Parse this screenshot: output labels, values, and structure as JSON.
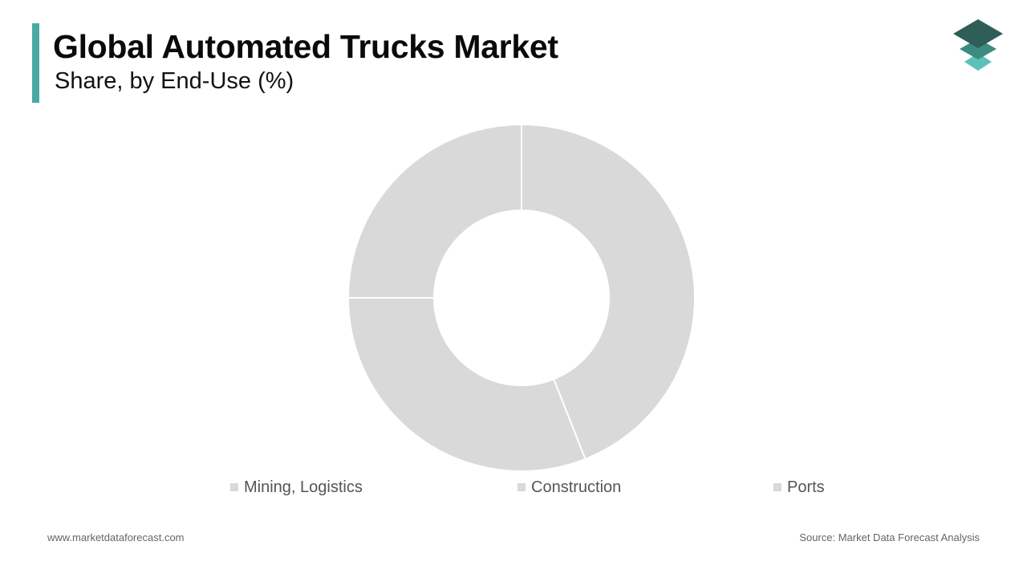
{
  "header": {
    "title": "Global Automated Trucks Market",
    "subtitle": "Share, by End-Use (%)",
    "accent_color": "#4aa9a4"
  },
  "logo": {
    "icon": "stacked-layers-logo",
    "colors": [
      "#2e5e57",
      "#3d8a80",
      "#5cc1b8"
    ]
  },
  "chart_data": {
    "type": "pie",
    "variant": "donut",
    "title": "Global Automated Trucks Market",
    "subtitle": "Share, by End-Use (%)",
    "categories": [
      "Mining, Logistics",
      "Construction",
      "Ports"
    ],
    "values": [
      44,
      31,
      25
    ],
    "colors": [
      "#d9d9d9",
      "#d9d9d9",
      "#d9d9d9"
    ],
    "legend_position": "bottom"
  },
  "legend": {
    "items": [
      {
        "label": "Mining, Logistics"
      },
      {
        "label": "Construction"
      },
      {
        "label": "Ports"
      }
    ]
  },
  "footer": {
    "website": "www.marketdataforecast.com",
    "source": "Source: Market Data Forecast Analysis"
  }
}
